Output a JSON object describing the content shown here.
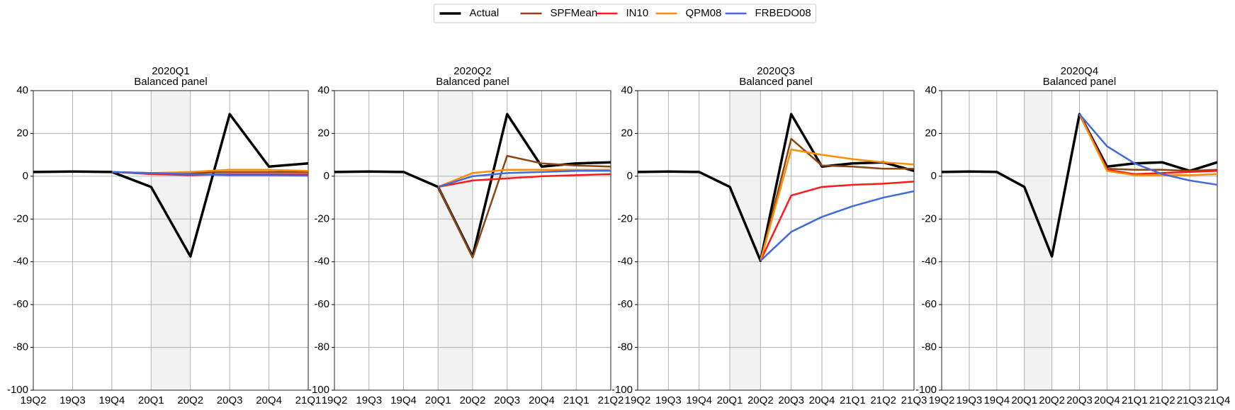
{
  "chart_data": [
    {
      "type": "line",
      "title": "2020Q1",
      "subtitle": "Balanced panel",
      "legend": "upper center",
      "grid": true,
      "categories": [
        "19Q2",
        "19Q3",
        "19Q4",
        "20Q1",
        "20Q2",
        "20Q3",
        "20Q4",
        "21Q1"
      ],
      "ylim": [
        -100,
        40
      ],
      "yticks": [
        -100,
        -80,
        -60,
        -40,
        -20,
        0,
        20,
        40
      ],
      "shaded_span": [
        "20Q1",
        "20Q2"
      ],
      "series": [
        {
          "name": "Actual",
          "color": "#000000",
          "values": [
            2,
            2.2,
            2,
            -5,
            -37.5,
            29,
            4.5,
            6
          ]
        },
        {
          "name": "SPFMean",
          "color": "#8b4513",
          "values": [
            null,
            null,
            2,
            1.5,
            1.5,
            2,
            2,
            2
          ]
        },
        {
          "name": "IN10",
          "color": "#ff1a1a",
          "values": [
            null,
            null,
            2,
            1,
            0.5,
            1,
            1,
            1
          ]
        },
        {
          "name": "QPM08",
          "color": "#ff8c00",
          "values": [
            null,
            null,
            2,
            1.5,
            2,
            3,
            3,
            2.5
          ]
        },
        {
          "name": "FRBEDO08",
          "color": "#4169e1",
          "values": [
            null,
            null,
            2,
            1.5,
            1,
            0.5,
            0.5,
            0.3
          ]
        }
      ]
    },
    {
      "type": "line",
      "title": "2020Q2",
      "subtitle": "Balanced panel",
      "grid": true,
      "categories": [
        "19Q2",
        "19Q3",
        "19Q4",
        "20Q1",
        "20Q2",
        "20Q3",
        "20Q4",
        "21Q1",
        "21Q2"
      ],
      "ylim": [
        -100,
        40
      ],
      "yticks": [
        -100,
        -80,
        -60,
        -40,
        -20,
        0,
        20,
        40
      ],
      "shaded_span": [
        "20Q1",
        "20Q2"
      ],
      "series": [
        {
          "name": "Actual",
          "color": "#000000",
          "values": [
            2,
            2.2,
            2,
            -5,
            -37.5,
            29,
            4.5,
            6,
            6.5
          ]
        },
        {
          "name": "SPFMean",
          "color": "#8b4513",
          "values": [
            null,
            null,
            null,
            -5,
            -38,
            9.5,
            6,
            5,
            4.5
          ]
        },
        {
          "name": "IN10",
          "color": "#ff1a1a",
          "values": [
            null,
            null,
            null,
            -5,
            -2,
            -1,
            0,
            0.5,
            1
          ]
        },
        {
          "name": "QPM08",
          "color": "#ff8c00",
          "values": [
            null,
            null,
            null,
            -5,
            1.5,
            3,
            3,
            3,
            3
          ]
        },
        {
          "name": "FRBEDO08",
          "color": "#4169e1",
          "values": [
            null,
            null,
            null,
            -5,
            0,
            1.5,
            2,
            2.5,
            2.5
          ]
        }
      ]
    },
    {
      "type": "line",
      "title": "2020Q3",
      "subtitle": "Balanced panel",
      "grid": true,
      "categories": [
        "19Q2",
        "19Q3",
        "19Q4",
        "20Q1",
        "20Q2",
        "20Q3",
        "20Q4",
        "21Q1",
        "21Q2",
        "21Q3"
      ],
      "ylim": [
        -100,
        40
      ],
      "yticks": [
        -100,
        -80,
        -60,
        -40,
        -20,
        0,
        20,
        40
      ],
      "shaded_span": [
        "20Q1",
        "20Q2"
      ],
      "series": [
        {
          "name": "Actual",
          "color": "#000000",
          "values": [
            2,
            2.2,
            2,
            -5,
            -39.5,
            29,
            4.5,
            6,
            6.5,
            2.5
          ]
        },
        {
          "name": "SPFMean",
          "color": "#8b4513",
          "values": [
            null,
            null,
            null,
            null,
            -39.5,
            17.5,
            5,
            4.5,
            3.5,
            3.5
          ]
        },
        {
          "name": "IN10",
          "color": "#ff1a1a",
          "values": [
            null,
            null,
            null,
            null,
            -39.5,
            -9,
            -5,
            -4,
            -3.5,
            -2.5
          ]
        },
        {
          "name": "QPM08",
          "color": "#ff8c00",
          "values": [
            null,
            null,
            null,
            null,
            -39.5,
            12.5,
            10,
            8,
            6.5,
            5.5
          ]
        },
        {
          "name": "FRBEDO08",
          "color": "#4169e1",
          "values": [
            null,
            null,
            null,
            null,
            -39.5,
            -26,
            -19,
            -14,
            -10,
            -7
          ]
        }
      ]
    },
    {
      "type": "line",
      "title": "2020Q4",
      "subtitle": "Balanced panel",
      "grid": true,
      "categories": [
        "19Q2",
        "19Q3",
        "19Q4",
        "20Q1",
        "20Q2",
        "20Q3",
        "20Q4",
        "21Q1",
        "21Q2",
        "21Q3",
        "21Q4"
      ],
      "ylim": [
        -100,
        40
      ],
      "yticks": [
        -100,
        -80,
        -60,
        -40,
        -20,
        0,
        20,
        40
      ],
      "shaded_span": [
        "20Q1",
        "20Q2"
      ],
      "series": [
        {
          "name": "Actual",
          "color": "#000000",
          "values": [
            2,
            2.2,
            2,
            -5,
            -37.5,
            29,
            4.5,
            6,
            6.5,
            2.5,
            6.5
          ]
        },
        {
          "name": "SPFMean",
          "color": "#8b4513",
          "values": [
            null,
            null,
            null,
            null,
            null,
            29,
            3.5,
            3,
            3,
            2.5,
            3
          ]
        },
        {
          "name": "IN10",
          "color": "#ff1a1a",
          "values": [
            null,
            null,
            null,
            null,
            null,
            29,
            3,
            1,
            1.5,
            2,
            2.5
          ]
        },
        {
          "name": "QPM08",
          "color": "#ff8c00",
          "values": [
            null,
            null,
            null,
            null,
            null,
            29,
            2.5,
            0.5,
            0.5,
            0.5,
            1
          ]
        },
        {
          "name": "FRBEDO08",
          "color": "#4169e1",
          "values": [
            null,
            null,
            null,
            null,
            null,
            29,
            14,
            6,
            1,
            -2,
            -4
          ]
        }
      ]
    }
  ]
}
